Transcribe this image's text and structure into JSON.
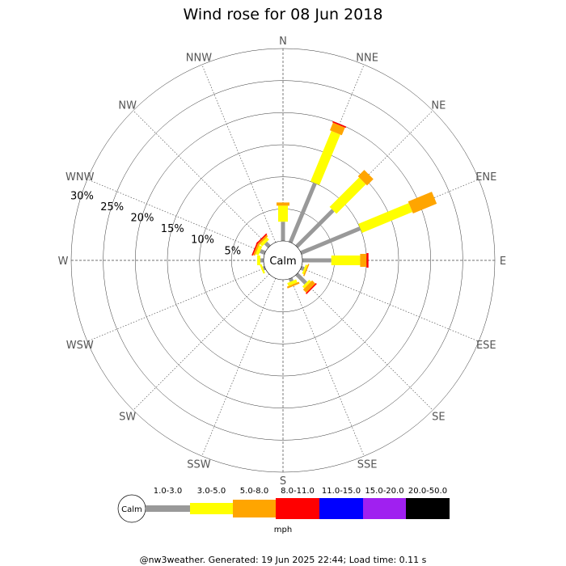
{
  "chart_data": {
    "type": "wind-rose",
    "title": "Wind rose for 08 Jun 2018",
    "calm_label": "Calm",
    "directions": [
      "N",
      "NNE",
      "NE",
      "ENE",
      "E",
      "ESE",
      "SE",
      "SSE",
      "S",
      "SSW",
      "SW",
      "WSW",
      "W",
      "WNW",
      "NW",
      "NNW"
    ],
    "ring_labels": [
      "5%",
      "10%",
      "15%",
      "20%",
      "25%",
      "30%"
    ],
    "ring_values": [
      5,
      10,
      15,
      20,
      25,
      30
    ],
    "bins": [
      "1.0-3.0",
      "3.0-5.0",
      "5.0-8.0",
      "8.0-11.0",
      "11.0-15.0",
      "15.0-20.0",
      "20.0-50.0"
    ],
    "bin_colors": [
      "#999999",
      "#ffff00",
      "#ffa500",
      "#ff0000",
      "#0000ff",
      "#a020f0",
      "#000000"
    ],
    "unit": "mph",
    "series": [
      {
        "direction": "N",
        "values": [
          3.0,
          2.5,
          0.5,
          0,
          0,
          0,
          0
        ]
      },
      {
        "direction": "NNE",
        "values": [
          10.0,
          8.5,
          1.3,
          0.2,
          0,
          0,
          0
        ]
      },
      {
        "direction": "NE",
        "values": [
          8.0,
          6.5,
          1.4,
          0,
          0,
          0,
          0
        ]
      },
      {
        "direction": "ENE",
        "values": [
          10.0,
          8.5,
          4.0,
          0,
          0,
          0,
          0
        ]
      },
      {
        "direction": "E",
        "values": [
          4.5,
          4.5,
          1.0,
          0.3,
          0,
          0,
          0
        ]
      },
      {
        "direction": "ESE",
        "values": [
          0.5,
          0.3,
          0.2,
          0,
          0,
          0,
          0
        ]
      },
      {
        "direction": "SE",
        "values": [
          2.0,
          0.4,
          0.7,
          0.2,
          0,
          0,
          0
        ]
      },
      {
        "direction": "SSE",
        "values": [
          0.5,
          0.5,
          0.3,
          0,
          0,
          0,
          0
        ]
      },
      {
        "direction": "S",
        "values": [
          0,
          0,
          0,
          0,
          0,
          0,
          0
        ]
      },
      {
        "direction": "SSW",
        "values": [
          0,
          0,
          0,
          0,
          0,
          0,
          0
        ]
      },
      {
        "direction": "SW",
        "values": [
          0,
          0,
          0,
          0,
          0,
          0,
          0
        ]
      },
      {
        "direction": "WSW",
        "values": [
          0.3,
          0.3,
          0,
          0,
          0,
          0,
          0
        ]
      },
      {
        "direction": "W",
        "values": [
          0.5,
          0.5,
          0,
          0,
          0,
          0,
          0
        ]
      },
      {
        "direction": "WNW",
        "values": [
          0.8,
          0.5,
          0.3,
          0.2,
          0,
          0,
          0
        ]
      },
      {
        "direction": "NW",
        "values": [
          0.8,
          0.5,
          0.3,
          0.2,
          0,
          0,
          0
        ]
      },
      {
        "direction": "NNW",
        "values": [
          0,
          0,
          0,
          0,
          0,
          0,
          0
        ]
      }
    ]
  },
  "footer": "@nw3weather. Generated: 19 Jun 2025 22:44; Load time: 0.11 s"
}
